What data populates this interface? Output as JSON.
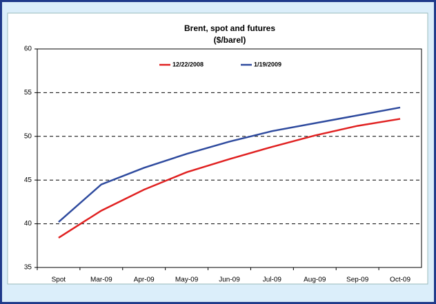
{
  "chart_data": {
    "type": "line",
    "title": "Brent, spot and futures",
    "subtitle": "($/barel)",
    "categories": [
      "Spot",
      "Mar-09",
      "Apr-09",
      "May-09",
      "Jun-09",
      "Jul-09",
      "Aug-09",
      "Sep-09",
      "Oct-09"
    ],
    "series": [
      {
        "name": "12/22/2008",
        "color": "#e02020",
        "values": [
          38.4,
          41.5,
          43.9,
          45.9,
          47.4,
          48.8,
          50.1,
          51.2,
          52.0
        ]
      },
      {
        "name": "1/19/2009",
        "color": "#2e4a9e",
        "values": [
          40.2,
          44.5,
          46.4,
          48.0,
          49.4,
          50.6,
          51.5,
          52.4,
          53.3
        ]
      }
    ],
    "ylim": [
      35,
      60
    ],
    "yticks": [
      35,
      40,
      45,
      50,
      55,
      60
    ],
    "grid": true,
    "legend": "top"
  }
}
